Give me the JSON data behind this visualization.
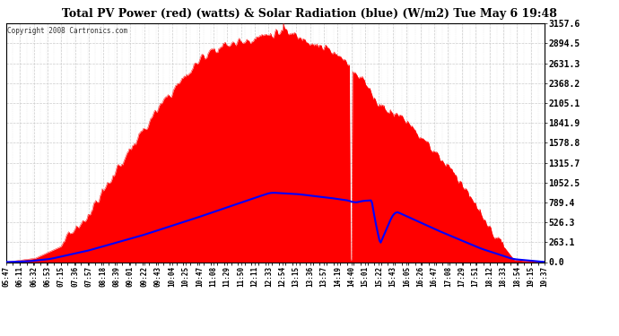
{
  "title": "Total PV Power (red) (watts) & Solar Radiation (blue) (W/m2) Tue May 6 19:48",
  "copyright": "Copyright 2008 Cartronics.com",
  "bg_color": "#ffffff",
  "red_color": "#ff0000",
  "blue_color": "#0000ff",
  "title_color": "#000000",
  "tick_color": "#000000",
  "grid_color": "#aaaaaa",
  "ymax": 3157.6,
  "ymin": 0.0,
  "yticks": [
    0.0,
    263.1,
    526.3,
    789.4,
    1052.5,
    1315.7,
    1578.8,
    1841.9,
    2105.1,
    2368.2,
    2631.3,
    2894.5,
    3157.6
  ],
  "ytick_labels": [
    "0.0",
    "263.1",
    "526.3",
    "789.4",
    "1052.5",
    "1315.7",
    "1578.8",
    "1841.9",
    "2105.1",
    "2368.2",
    "2631.3",
    "2894.5",
    "3157.6"
  ],
  "xtick_labels": [
    "05:47",
    "06:11",
    "06:32",
    "06:53",
    "07:15",
    "07:36",
    "07:57",
    "08:18",
    "08:39",
    "09:01",
    "09:22",
    "09:43",
    "10:04",
    "10:25",
    "10:47",
    "11:08",
    "11:29",
    "11:50",
    "12:11",
    "12:33",
    "12:54",
    "13:15",
    "13:36",
    "13:57",
    "14:19",
    "14:40",
    "15:01",
    "15:22",
    "15:43",
    "16:05",
    "16:26",
    "16:47",
    "17:08",
    "17:29",
    "17:51",
    "18:12",
    "18:33",
    "18:54",
    "19:15",
    "19:37"
  ],
  "pv_peak": 3050.0,
  "solar_peak": 920.0,
  "n_points": 500
}
